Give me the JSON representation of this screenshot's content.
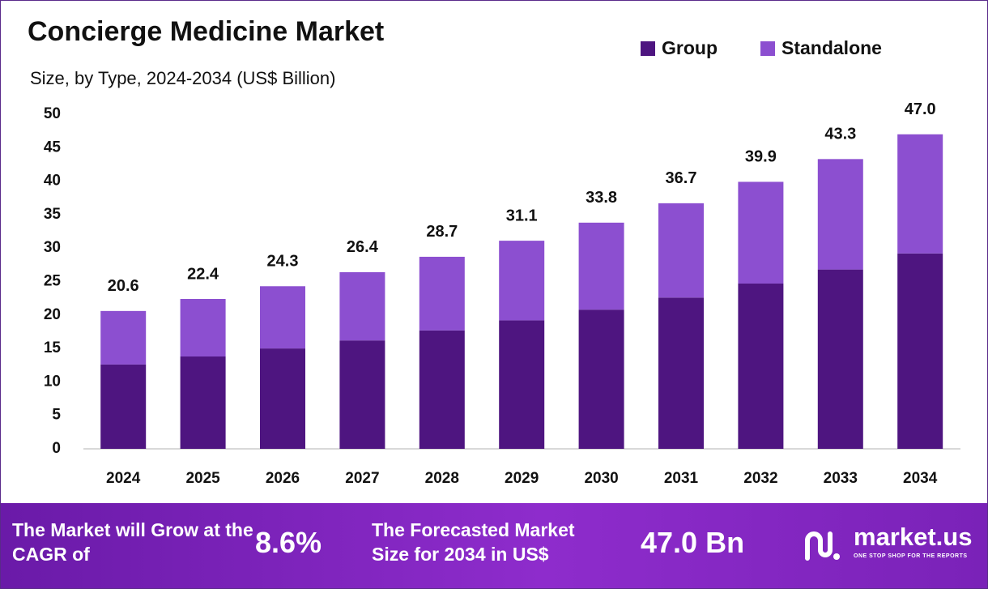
{
  "chart_data": {
    "type": "stacked_bar",
    "title": "Concierge Medicine Market",
    "subtitle": "Size, by Type, 2024-2034 (US$ Billion)",
    "categories": [
      "2024",
      "2025",
      "2026",
      "2027",
      "2028",
      "2029",
      "2030",
      "2031",
      "2032",
      "2033",
      "2034"
    ],
    "series": [
      {
        "name": "Group",
        "color": "#4e1580",
        "values": [
          12.6,
          13.8,
          15.0,
          16.2,
          17.7,
          19.2,
          20.8,
          22.6,
          24.7,
          26.8,
          29.2
        ]
      },
      {
        "name": "Standalone",
        "color": "#8c4fd0",
        "values": [
          8.0,
          8.6,
          9.3,
          10.2,
          11.0,
          11.9,
          13.0,
          14.1,
          15.2,
          16.5,
          17.8
        ]
      }
    ],
    "totals": [
      20.6,
      22.4,
      24.3,
      26.4,
      28.7,
      31.1,
      33.8,
      36.7,
      39.9,
      43.3,
      47.0
    ],
    "total_labels": [
      "20.6",
      "22.4",
      "24.3",
      "26.4",
      "28.7",
      "31.1",
      "33.8",
      "36.7",
      "39.9",
      "43.3",
      "47.0"
    ],
    "ylim": [
      0,
      50
    ],
    "yticks": [
      0,
      5,
      10,
      15,
      20,
      25,
      30,
      35,
      40,
      45,
      50
    ],
    "grid": false
  },
  "footer": {
    "cagr_text": "The Market will Grow at the CAGR of",
    "cagr_value": "8.6%",
    "forecast_text": "The Forecasted Market Size for 2034 in US$",
    "forecast_value": "47.0 Bn",
    "brand": "market.us",
    "tagline": "ONE STOP SHOP FOR THE REPORTS"
  }
}
